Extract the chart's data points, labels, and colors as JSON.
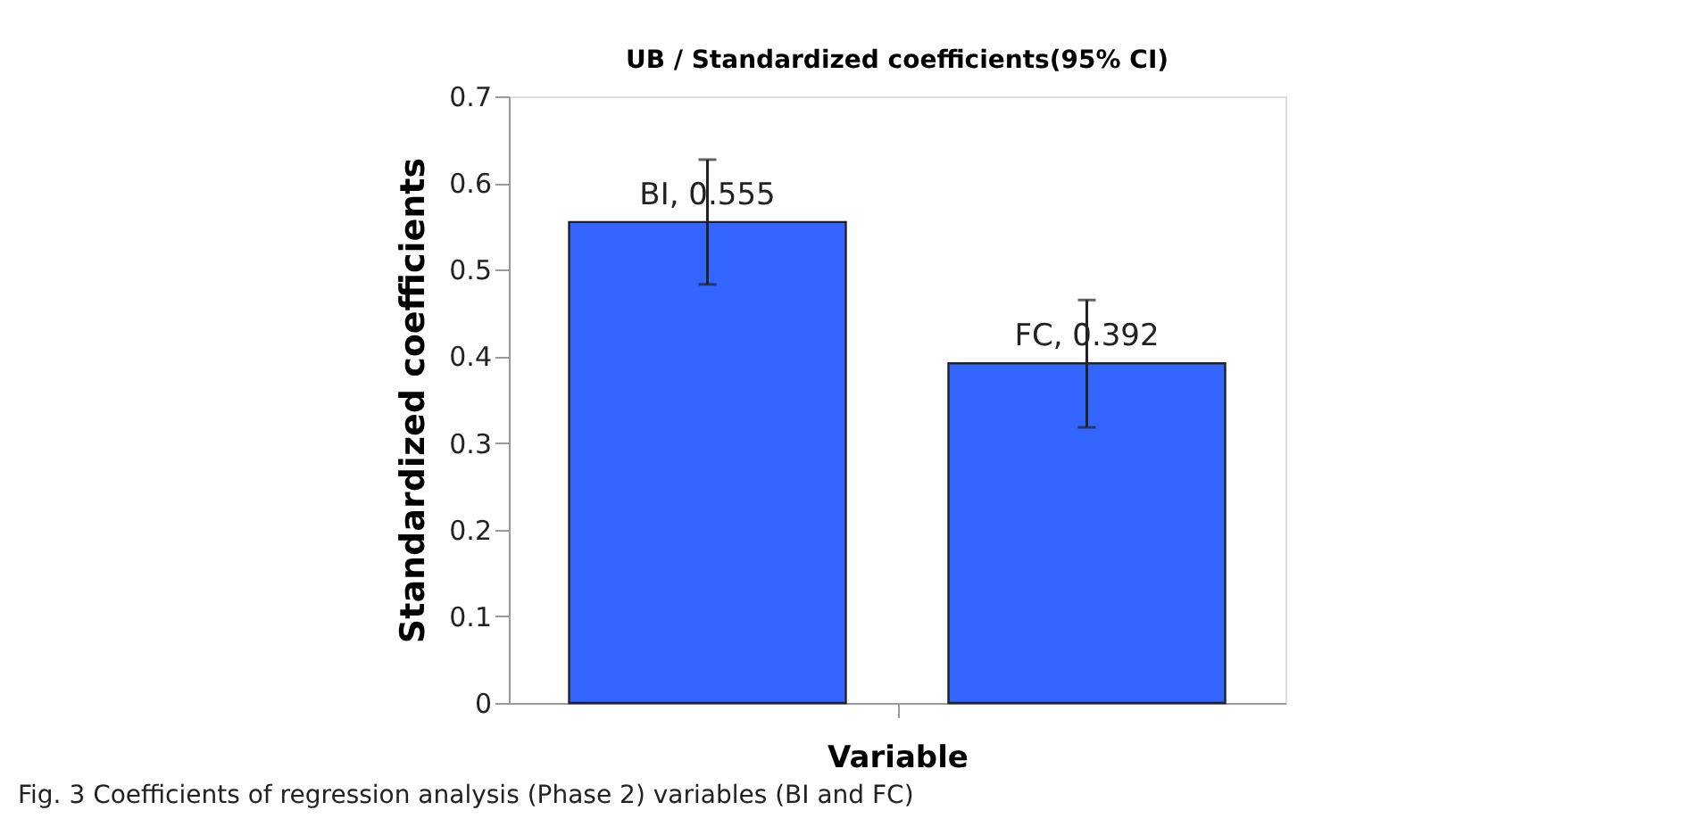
{
  "chart_data": {
    "type": "bar",
    "title": "UB / Standardized coefficients(95% CI)",
    "xlabel": "Variable",
    "ylabel": "Standardized coefficients",
    "categories": [
      null,
      null
    ],
    "values": [
      0.555,
      0.392
    ],
    "color": "#3366ff",
    "errors": [
      [
        0.483,
        0.627
      ],
      [
        0.318,
        0.465
      ]
    ],
    "value_labels": [
      "BI, 0.555",
      "FC, 0.392"
    ],
    "ylim": [
      0,
      0.7
    ],
    "yticks": [
      0,
      {
        "value": 0.1,
        "label": "0.1"
      },
      {
        "value": 0.2,
        "label": "0.2"
      },
      {
        "value": 0.3,
        "label": "0.3"
      },
      {
        "value": 0.4,
        "label": "0.4"
      },
      {
        "value": 0.5,
        "label": "0.5"
      },
      {
        "value": 0.6,
        "label": "0.6"
      },
      {
        "value": 0.7,
        "label": "0.7"
      }
    ],
    "grid": false,
    "annotations": [
      "Fig. 3  Coefficients of regression analysis (Phase 2) variables (BI and FC)"
    ]
  }
}
